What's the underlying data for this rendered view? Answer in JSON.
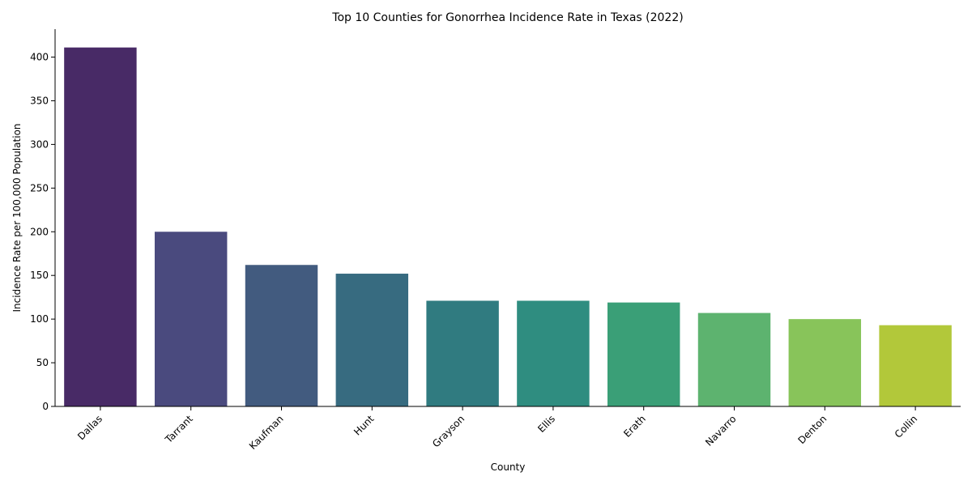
{
  "chart_data": {
    "type": "bar",
    "title": "Top 10 Counties for Gonorrhea Incidence Rate in Texas (2022)",
    "xlabel": "County",
    "ylabel": "Incidence Rate per 100,000 Population",
    "categories": [
      "Dallas",
      "Tarrant",
      "Kaufman",
      "Hunt",
      "Grayson",
      "Ellis",
      "Erath",
      "Navarro",
      "Denton",
      "Collin"
    ],
    "values": [
      411,
      200,
      162,
      152,
      121,
      121,
      119,
      107,
      100,
      93
    ],
    "colors": [
      "#482a66",
      "#4a4a7e",
      "#425b7f",
      "#376b80",
      "#307b80",
      "#2f8d80",
      "#3a9f77",
      "#5db36f",
      "#88c45a",
      "#b2c83a"
    ],
    "ylim": [
      0,
      432
    ],
    "yticks": [
      0,
      50,
      100,
      150,
      200,
      250,
      300,
      350,
      400
    ],
    "grid": false,
    "legend": "none"
  }
}
